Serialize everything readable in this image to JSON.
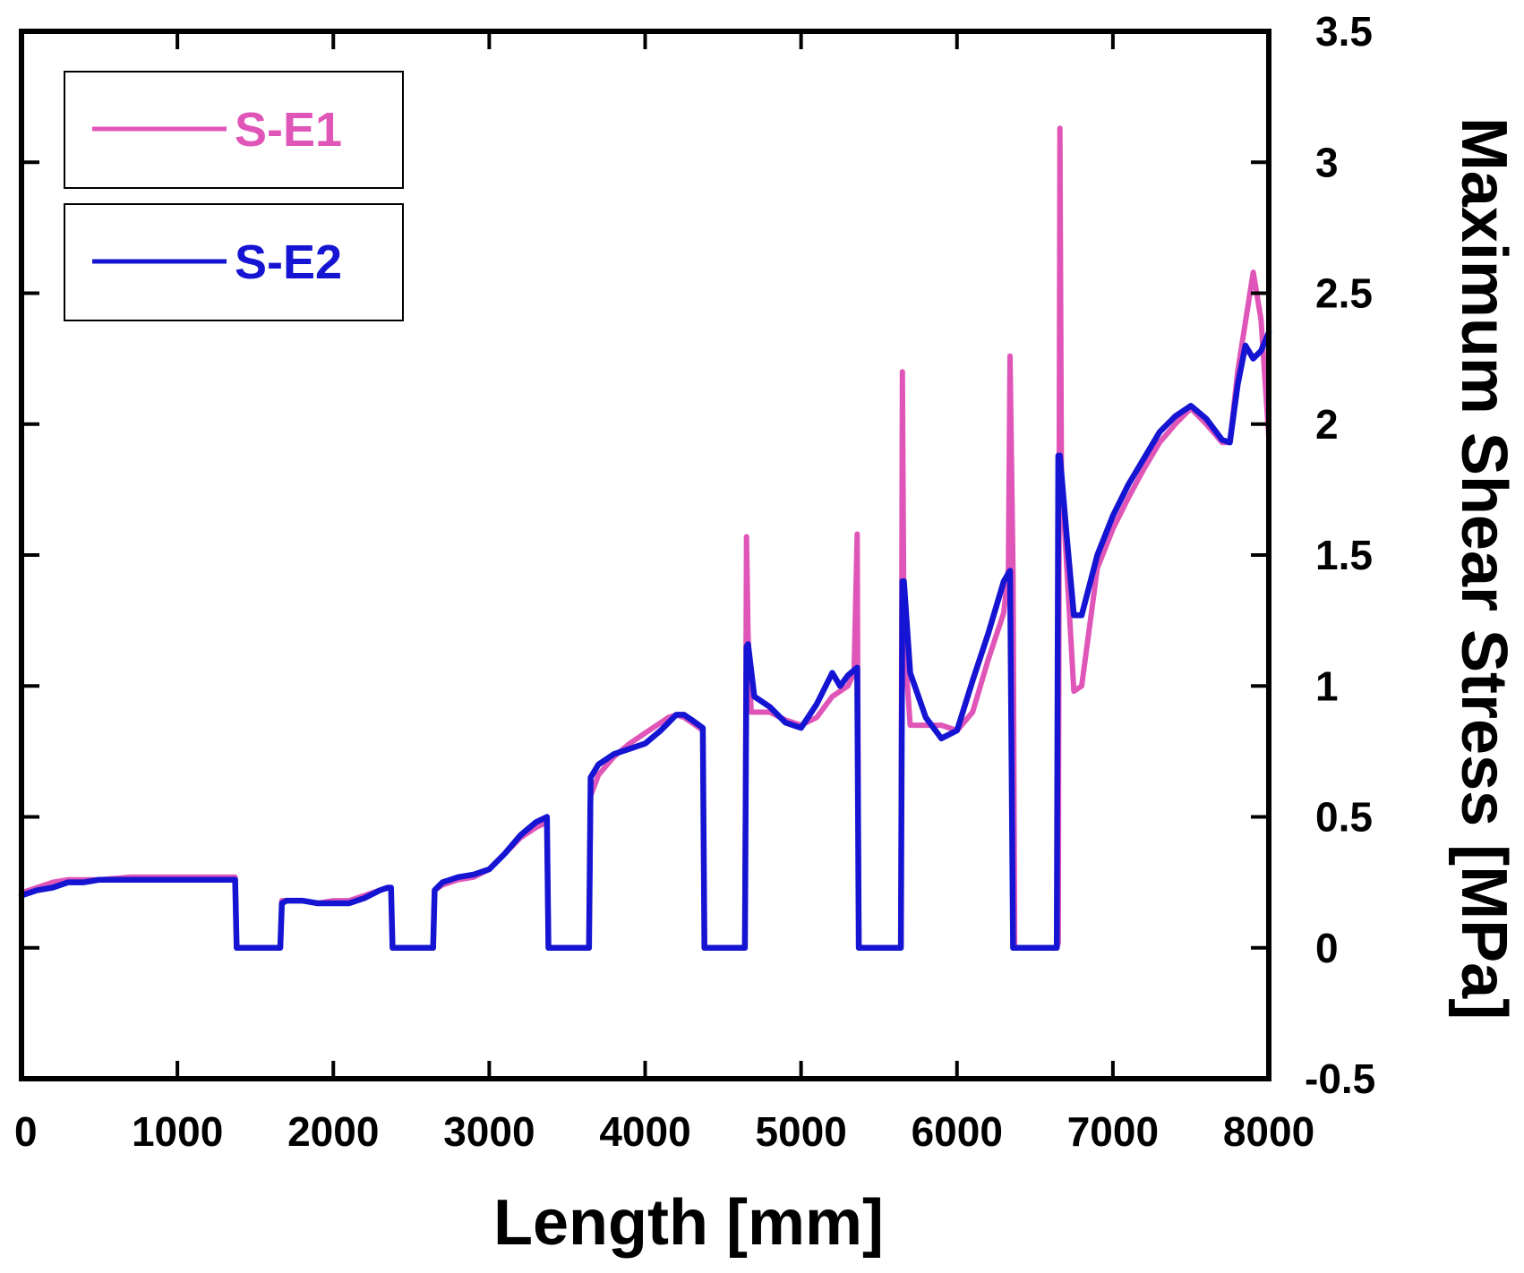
{
  "chart_data": {
    "type": "line",
    "title": "",
    "xlabel": "Length [mm]",
    "ylabel": "Maximum Shear Stress [MPa]",
    "xlim": [
      0,
      8000
    ],
    "ylim": [
      -0.5,
      3.5
    ],
    "xticks": [
      0,
      1000,
      2000,
      3000,
      4000,
      5000,
      6000,
      7000,
      8000
    ],
    "yticks": [
      -0.5,
      0,
      0.5,
      1,
      1.5,
      2,
      2.5,
      3,
      3.5
    ],
    "xtick_labels": [
      "0",
      "1000",
      "2000",
      "3000",
      "4000",
      "5000",
      "6000",
      "7000",
      "8000"
    ],
    "ytick_labels": [
      "-0.5",
      "0",
      "0.5",
      "1",
      "1.5",
      "2",
      "2.5",
      "3",
      "3.5"
    ],
    "grid": false,
    "legend_position": "top-left",
    "y_axis_side": "right",
    "series": [
      {
        "name": "S-E1",
        "color": "#e055b8",
        "x": [
          0,
          100,
          200,
          300,
          400,
          500,
          700,
          1000,
          1300,
          1370,
          1380,
          1660,
          1670,
          1700,
          1800,
          1900,
          2000,
          2100,
          2200,
          2300,
          2350,
          2370,
          2380,
          2640,
          2650,
          2700,
          2800,
          2900,
          3000,
          3100,
          3200,
          3300,
          3370,
          3380,
          3640,
          3650,
          3700,
          3800,
          3900,
          4000,
          4100,
          4150,
          4200,
          4250,
          4300,
          4370,
          4380,
          4640,
          4650,
          4660,
          4680,
          4700,
          4800,
          4900,
          5000,
          5100,
          5200,
          5300,
          5340,
          5360,
          5370,
          5380,
          5640,
          5650,
          5660,
          5700,
          5800,
          5900,
          6000,
          6100,
          6200,
          6300,
          6330,
          6340,
          6360,
          6370,
          6640,
          6650,
          6660,
          6670,
          6700,
          6750,
          6800,
          6900,
          7000,
          7100,
          7200,
          7300,
          7400,
          7500,
          7600,
          7700,
          7750,
          7800,
          7900,
          7950,
          8000
        ],
        "y": [
          0.21,
          0.23,
          0.25,
          0.26,
          0.26,
          0.26,
          0.27,
          0.27,
          0.27,
          0.27,
          0.0,
          0.0,
          0.18,
          0.18,
          0.18,
          0.17,
          0.18,
          0.18,
          0.2,
          0.22,
          0.23,
          0.23,
          0.0,
          0.0,
          0.22,
          0.24,
          0.26,
          0.27,
          0.3,
          0.36,
          0.42,
          0.46,
          0.48,
          0.0,
          0.0,
          0.58,
          0.66,
          0.73,
          0.78,
          0.82,
          0.86,
          0.88,
          0.89,
          0.88,
          0.86,
          0.83,
          0.0,
          0.0,
          1.57,
          1.2,
          0.9,
          0.9,
          0.9,
          0.87,
          0.85,
          0.88,
          0.96,
          1.0,
          1.05,
          1.58,
          0.0,
          0.0,
          0.0,
          2.2,
          1.2,
          0.85,
          0.85,
          0.85,
          0.83,
          0.9,
          1.1,
          1.28,
          1.45,
          2.26,
          1.42,
          0.0,
          0.0,
          0.02,
          3.13,
          1.8,
          1.5,
          0.98,
          1.0,
          1.45,
          1.6,
          1.72,
          1.83,
          1.93,
          2.0,
          2.06,
          2.0,
          1.93,
          1.93,
          2.2,
          2.58,
          2.4,
          1.95
        ]
      },
      {
        "name": "S-E2",
        "color": "#1414d2",
        "x": [
          0,
          100,
          200,
          300,
          400,
          500,
          700,
          1000,
          1300,
          1370,
          1380,
          1660,
          1670,
          1700,
          1800,
          1900,
          2000,
          2100,
          2200,
          2300,
          2350,
          2370,
          2380,
          2640,
          2650,
          2700,
          2800,
          2900,
          3000,
          3100,
          3200,
          3300,
          3370,
          3380,
          3640,
          3650,
          3700,
          3800,
          3900,
          4000,
          4100,
          4150,
          4200,
          4250,
          4300,
          4370,
          4380,
          4640,
          4650,
          4660,
          4700,
          4800,
          4900,
          5000,
          5100,
          5200,
          5250,
          5300,
          5360,
          5370,
          5380,
          5640,
          5650,
          5660,
          5700,
          5800,
          5900,
          6000,
          6100,
          6200,
          6300,
          6340,
          6360,
          6370,
          6640,
          6650,
          6660,
          6700,
          6750,
          6800,
          6900,
          7000,
          7100,
          7200,
          7300,
          7400,
          7500,
          7600,
          7700,
          7750,
          7800,
          7850,
          7900,
          7950,
          8000
        ],
        "y": [
          0.2,
          0.22,
          0.23,
          0.25,
          0.25,
          0.26,
          0.26,
          0.26,
          0.26,
          0.26,
          0.0,
          0.0,
          0.17,
          0.18,
          0.18,
          0.17,
          0.17,
          0.17,
          0.19,
          0.22,
          0.23,
          0.23,
          0.0,
          0.0,
          0.22,
          0.25,
          0.27,
          0.28,
          0.3,
          0.36,
          0.43,
          0.48,
          0.5,
          0.0,
          0.0,
          0.65,
          0.7,
          0.74,
          0.76,
          0.78,
          0.83,
          0.86,
          0.89,
          0.89,
          0.87,
          0.84,
          0.0,
          0.0,
          1.15,
          1.16,
          0.96,
          0.92,
          0.86,
          0.84,
          0.93,
          1.05,
          1.0,
          1.04,
          1.07,
          0.0,
          0.0,
          0.0,
          1.4,
          1.4,
          1.05,
          0.88,
          0.8,
          0.83,
          1.02,
          1.2,
          1.4,
          1.44,
          0.0,
          0.0,
          0.0,
          1.88,
          1.88,
          1.6,
          1.27,
          1.27,
          1.5,
          1.65,
          1.77,
          1.87,
          1.97,
          2.03,
          2.07,
          2.02,
          1.94,
          1.93,
          2.15,
          2.3,
          2.25,
          2.28,
          2.35
        ]
      }
    ]
  }
}
